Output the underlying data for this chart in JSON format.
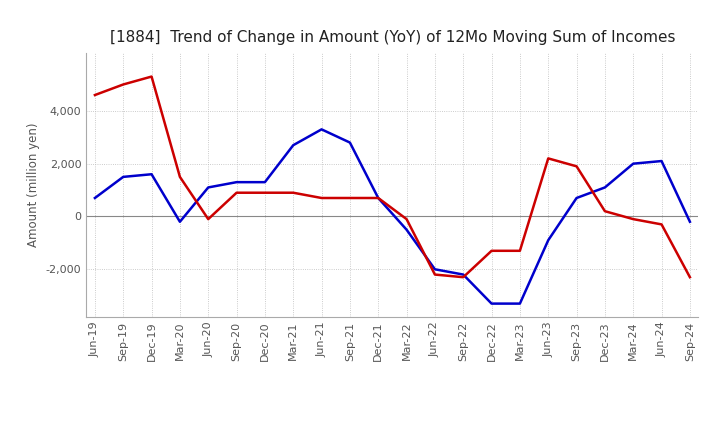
{
  "title": "[1884]  Trend of Change in Amount (YoY) of 12Mo Moving Sum of Incomes",
  "ylabel": "Amount (million yen)",
  "ylim": [
    -3800,
    6200
  ],
  "yticks": [
    -2000,
    0,
    2000,
    4000
  ],
  "x_labels": [
    "Jun-19",
    "Sep-19",
    "Dec-19",
    "Mar-20",
    "Jun-20",
    "Sep-20",
    "Dec-20",
    "Mar-21",
    "Jun-21",
    "Sep-21",
    "Dec-21",
    "Mar-22",
    "Jun-22",
    "Sep-22",
    "Dec-22",
    "Mar-23",
    "Jun-23",
    "Sep-23",
    "Dec-23",
    "Mar-24",
    "Jun-24",
    "Sep-24"
  ],
  "ordinary_income": [
    700,
    1500,
    1600,
    -200,
    1100,
    1300,
    1300,
    2700,
    3300,
    2800,
    700,
    -500,
    -2000,
    -2200,
    -3300,
    -3300,
    -900,
    700,
    1100,
    2000,
    2100,
    -200
  ],
  "net_income": [
    4600,
    5000,
    5300,
    1500,
    -100,
    900,
    900,
    900,
    700,
    700,
    700,
    -100,
    -2200,
    -2300,
    -1300,
    -1300,
    2200,
    1900,
    200,
    -100,
    -300,
    -2300
  ],
  "ordinary_color": "#0000cc",
  "net_color": "#cc0000",
  "line_width": 1.8,
  "grid_color": "#bbbbbb",
  "grid_style": "dotted",
  "background_color": "#ffffff",
  "title_fontsize": 11,
  "label_fontsize": 8.5,
  "tick_fontsize": 8
}
